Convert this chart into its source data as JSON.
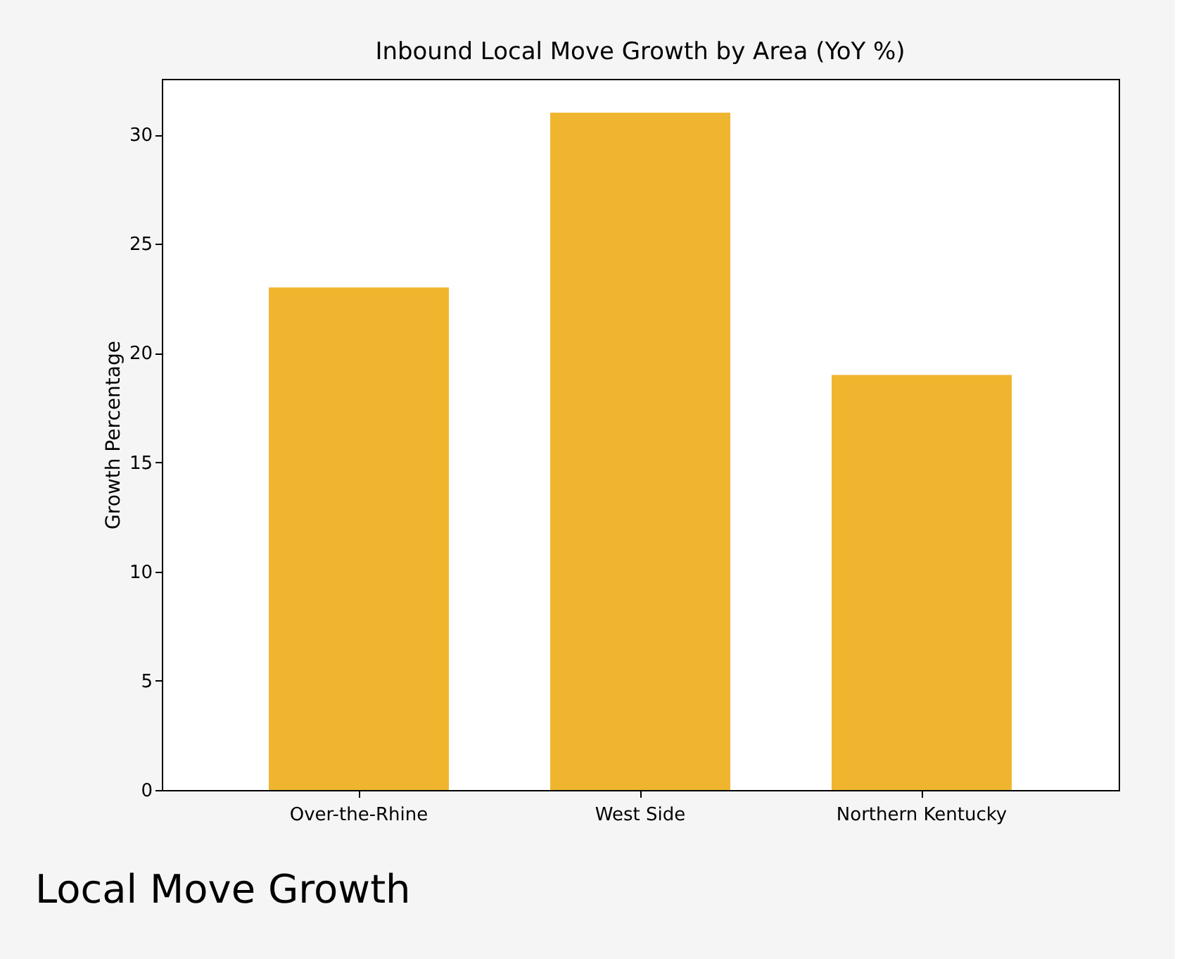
{
  "chart_data": {
    "type": "bar",
    "title": "Inbound Local Move Growth by Area (YoY %)",
    "ylabel": "Growth Percentage",
    "categories": [
      "Over-the-Rhine",
      "West Side",
      "Northern Kentucky"
    ],
    "values": [
      23,
      31,
      19
    ],
    "color": "#f0b52f",
    "ylim": [
      0,
      32.55
    ],
    "yticks": [
      0,
      5,
      10,
      15,
      20,
      25,
      30
    ],
    "grid": false,
    "annotations": [
      "Local Move Growth"
    ]
  }
}
